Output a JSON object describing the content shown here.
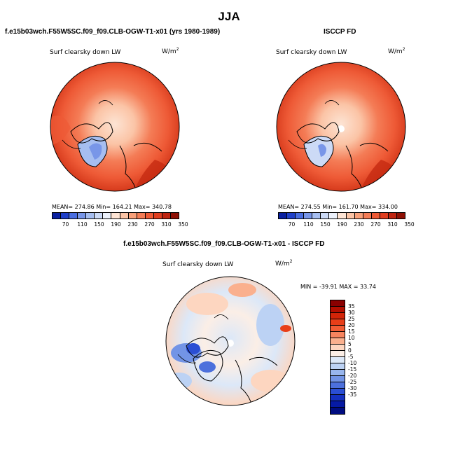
{
  "main_title": "JJA",
  "panels": [
    {
      "title": "f.e15b03wch.F55W5SC.f09_f09.CLB-OGW-T1-x01 (yrs 1980-1989)",
      "variable": "Surf clearsky down LW",
      "units": "W/m",
      "units_exp": "2",
      "stats_text": "MEAN= 274.86   Min= 164.21   Max= 340.78",
      "mean": 274.86,
      "min": 164.21,
      "max": 340.78
    },
    {
      "title": "ISCCP FD",
      "variable": "Surf clearsky down LW",
      "units": "W/m",
      "units_exp": "2",
      "stats_text": "MEAN= 274.55   Min= 161.70   Max= 334.00",
      "mean": 274.55,
      "min": 161.7,
      "max": 334.0
    }
  ],
  "diff_panel": {
    "title": "f.e15b03wch.F55W5SC.f09_f09.CLB-OGW-T1-x01 - ISCCP FD",
    "variable": "Surf clearsky down LW",
    "units": "W/m",
    "units_exp": "2",
    "stats_text": "MIN = -39.91  MAX =  33.74",
    "min": -39.91,
    "max": 33.74
  },
  "colorbar_abs": {
    "ticks": [
      "70",
      "110",
      "150",
      "190",
      "230",
      "270",
      "310",
      "350"
    ],
    "colors": [
      "#0a20a0",
      "#2040c8",
      "#4a6ee0",
      "#7896e8",
      "#a6bef0",
      "#ccdaf6",
      "#ecf1fb",
      "#fde4d4",
      "#fbc4a6",
      "#f8a07a",
      "#f47c56",
      "#ee5a36",
      "#e03e20",
      "#bf2410",
      "#8e1004"
    ]
  },
  "colorbar_diff": {
    "ticks": [
      "35",
      "30",
      "25",
      "20",
      "15",
      "10",
      "5",
      "0",
      "-5",
      "-10",
      "-15",
      "-20",
      "-25",
      "-30",
      "-35"
    ],
    "colors": [
      "#8a0000",
      "#b30e00",
      "#d32408",
      "#e83e18",
      "#f25c34",
      "#f7845e",
      "#fab08e",
      "#fdd6c0",
      "#fbeee6",
      "#dce8f8",
      "#bcd2f4",
      "#98b6ee",
      "#7294e6",
      "#4c70dc",
      "#2a4ed4",
      "#1430c0",
      "#061aa4",
      "#000c80"
    ]
  }
}
